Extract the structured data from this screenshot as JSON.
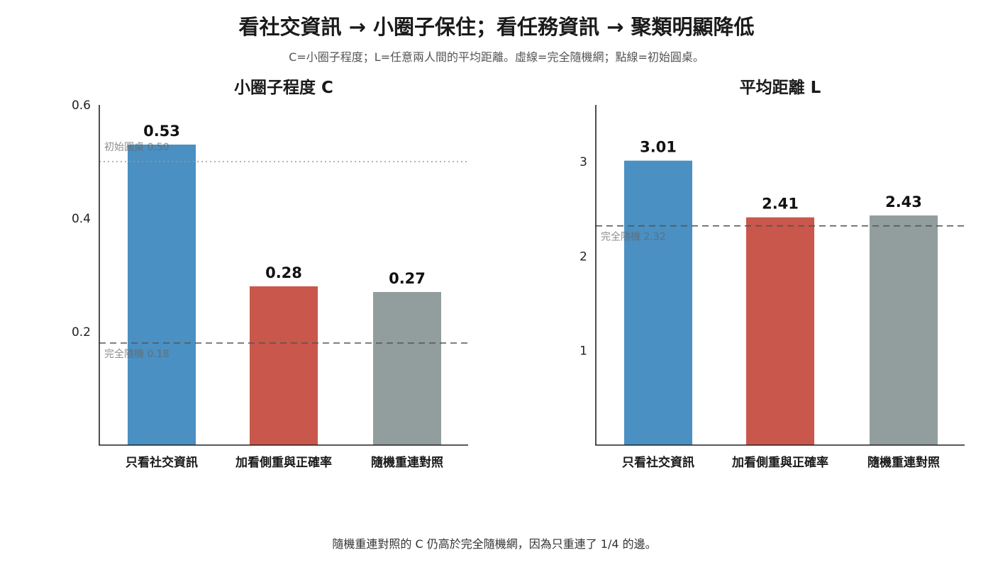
{
  "title": "看社交資訊 → 小圈子保住；看任務資訊 → 聚類明顯降低",
  "subtitle": "C=小圈子程度；L=任意兩人間的平均距離。虛線=完全隨機網；點線=初始圓桌。",
  "footnote": "隨機重連對照的 C 仍高於完全隨機網，因為只重連了 1/4 的邊。",
  "colors": {
    "social": "#4a90c2",
    "accuracy": "#c9574c",
    "control": "#929e9d"
  },
  "chart_data": [
    {
      "type": "bar",
      "title": "小圈子程度 C",
      "categories": [
        "只看社交資訊",
        "加看側重與正確率",
        "隨機重連對照"
      ],
      "values": [
        0.53,
        0.28,
        0.27
      ],
      "value_labels": [
        "0.53",
        "0.28",
        "0.27"
      ],
      "ylim": [
        0,
        0.6
      ],
      "yticks": [
        0.2,
        0.4,
        0.6
      ],
      "ytick_labels": [
        "0.2",
        "0.4",
        "0.6"
      ],
      "grid": false,
      "reference_lines": [
        {
          "label": "初始圓桌 0.50",
          "value": 0.5,
          "style": "dotted"
        },
        {
          "label": "完全隨機 0.18",
          "value": 0.18,
          "style": "dashed"
        }
      ]
    },
    {
      "type": "bar",
      "title": "平均距離 L",
      "categories": [
        "只看社交資訊",
        "加看側重與正確率",
        "隨機重連對照"
      ],
      "values": [
        3.01,
        2.41,
        2.43
      ],
      "value_labels": [
        "3.01",
        "2.41",
        "2.43"
      ],
      "ylim": [
        0,
        3.6
      ],
      "yticks": [
        1,
        2,
        3
      ],
      "ytick_labels": [
        "1",
        "2",
        "3"
      ],
      "grid": false,
      "reference_lines": [
        {
          "label": "完全隨機 2.32",
          "value": 2.32,
          "style": "dashed"
        }
      ]
    }
  ]
}
